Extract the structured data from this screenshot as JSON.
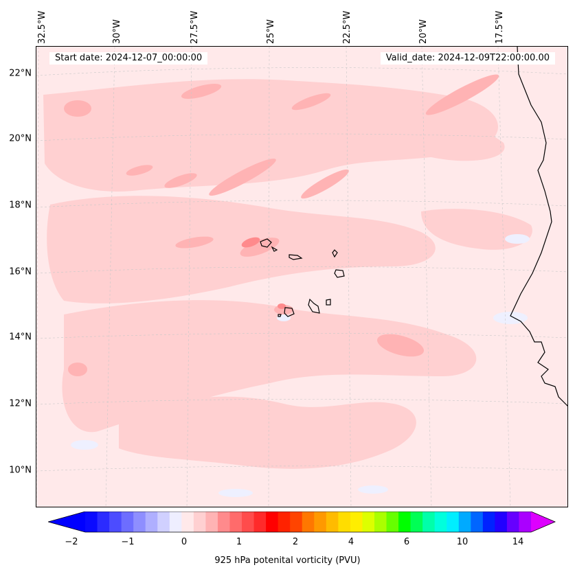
{
  "header": {
    "start_date": "Start date: 2024-12-07_00:00:00",
    "valid_date": "Valid_date: 2024-12-09T22:00:00.00"
  },
  "map": {
    "lon_labels": [
      "32.5°W",
      "30°W",
      "27.5°W",
      "25°W",
      "22.5°W",
      "20°W",
      "17.5°W"
    ],
    "lat_labels": [
      "22°N",
      "20°N",
      "18°N",
      "16°N",
      "14°N",
      "12°N",
      "10°N"
    ],
    "field_colors": {
      "background": "#ffe9ea",
      "light": "#ffd0d1",
      "mid": "#ffb3b4",
      "strong": "#ff8a8c",
      "negative": "#eef0ff",
      "coast": "#000000"
    }
  },
  "colorbar": {
    "label": "925 hPa potenital vorticity (PVU)",
    "ticks": [
      "−2",
      "−1",
      "0",
      "1",
      "2",
      "4",
      "6",
      "10",
      "14"
    ],
    "under_color": "#0000ff",
    "over_color": "#dd00ff",
    "colors": [
      "#0a0aff",
      "#2b2bff",
      "#4c4cff",
      "#6d6dff",
      "#8e8eff",
      "#afafff",
      "#d0d0ff",
      "#eeeeff",
      "#ffe9ea",
      "#ffd0d1",
      "#ffb3b4",
      "#ff8a8c",
      "#ff6b6b",
      "#ff4c4c",
      "#ff2a2a",
      "#ff0000",
      "#ff2200",
      "#ff4400",
      "#ff7700",
      "#ff9900",
      "#ffbb00",
      "#ffdd00",
      "#ffee00",
      "#ddff00",
      "#aaff00",
      "#66ff00",
      "#00ff00",
      "#00ff55",
      "#00ffaa",
      "#00ffdd",
      "#00eeff",
      "#00aaff",
      "#0066ff",
      "#0022ff",
      "#2200ff",
      "#6600ff",
      "#aa00ff"
    ]
  }
}
